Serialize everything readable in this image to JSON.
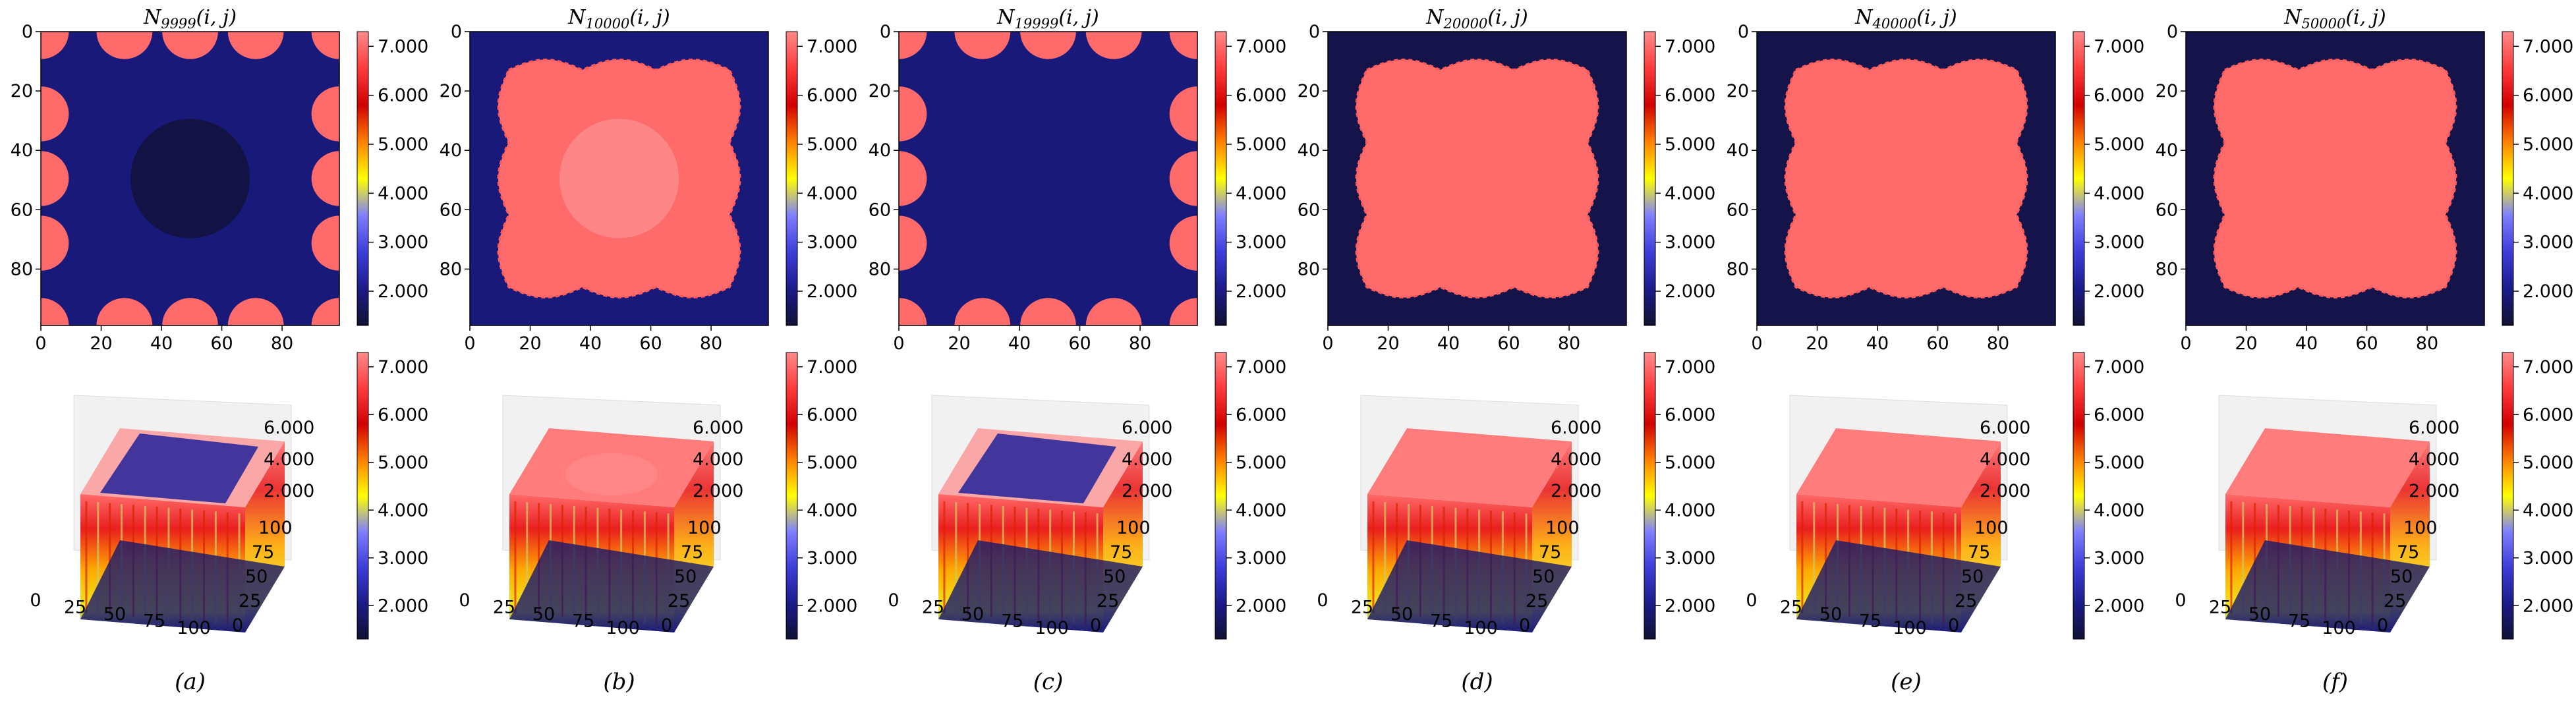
{
  "chart_data": {
    "type": "heatmap",
    "colormap": {
      "name": "custom-navy-blue-yellow-orange-red-salmon",
      "stops": [
        "#111133",
        "#1b1b8a",
        "#3d3dd9",
        "#7f7fff",
        "#ffff00",
        "#ff8000",
        "#d10000",
        "#ff3b3b",
        "#ff8a8a"
      ],
      "range": [
        1.3,
        7.3
      ],
      "ticks": [
        "2.000",
        "3.000",
        "4.000",
        "5.000",
        "6.000",
        "7.000"
      ],
      "tick_values": [
        2,
        3,
        4,
        5,
        6,
        7
      ]
    },
    "heatmap_axes": {
      "x_ticks": [
        "0",
        "20",
        "40",
        "60",
        "80"
      ],
      "y_ticks": [
        "0",
        "20",
        "40",
        "60",
        "80"
      ],
      "tick_values": [
        0,
        20,
        40,
        60,
        80
      ],
      "range": [
        0,
        99
      ]
    },
    "surface_axes": {
      "x_ticks": [
        "0",
        "25",
        "50",
        "75",
        "100"
      ],
      "y_ticks": [
        "0",
        "25",
        "50",
        "75",
        "100"
      ],
      "z_ticks": [
        "2.000",
        "4.000",
        "6.000"
      ],
      "z_values": [
        2,
        4,
        6
      ]
    },
    "panels": [
      {
        "id": "a",
        "title_sub": "9999",
        "label": "(a)",
        "state": "inside_low",
        "center_disk": "dark",
        "bg": 1.9,
        "fg": 7.0,
        "disk_value": 1.4
      },
      {
        "id": "b",
        "title_sub": "10000",
        "label": "(b)",
        "state": "inside_high",
        "center_disk": "bright",
        "bg": 7.0,
        "fg": 1.9,
        "disk_value": 7.3
      },
      {
        "id": "c",
        "title_sub": "19999",
        "label": "(c)",
        "state": "inside_low",
        "center_disk": "none",
        "bg": 1.9,
        "fg": 7.0
      },
      {
        "id": "d",
        "title_sub": "20000",
        "label": "(d)",
        "state": "inside_high",
        "center_disk": "none",
        "bg": 7.0,
        "fg": 1.5
      },
      {
        "id": "e",
        "title_sub": "40000",
        "label": "(e)",
        "state": "inside_high",
        "center_disk": "none",
        "bg": 7.0,
        "fg": 1.5
      },
      {
        "id": "f",
        "title_sub": "50000",
        "label": "(f)",
        "state": "inside_high",
        "center_disk": "none",
        "bg": 7.0,
        "fg": 1.5
      }
    ],
    "title_prefix": "N",
    "title_suffix": "(i, j)"
  }
}
